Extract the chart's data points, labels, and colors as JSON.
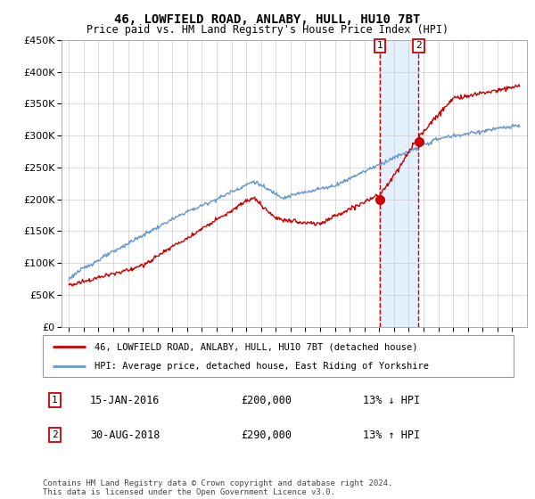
{
  "title": "46, LOWFIELD ROAD, ANLABY, HULL, HU10 7BT",
  "subtitle": "Price paid vs. HM Land Registry's House Price Index (HPI)",
  "legend_line1": "46, LOWFIELD ROAD, ANLABY, HULL, HU10 7BT (detached house)",
  "legend_line2": "HPI: Average price, detached house, East Riding of Yorkshire",
  "transaction1_date": "15-JAN-2016",
  "transaction1_price": "£200,000",
  "transaction1_hpi": "13% ↓ HPI",
  "transaction1_year": 2016.04,
  "transaction1_value": 200000,
  "transaction2_date": "30-AUG-2018",
  "transaction2_price": "£290,000",
  "transaction2_hpi": "13% ↑ HPI",
  "transaction2_year": 2018.66,
  "transaction2_value": 290000,
  "property_color": "#cc0000",
  "hpi_color": "#6699cc",
  "shaded_color": "#ddeeff",
  "footer": "Contains HM Land Registry data © Crown copyright and database right 2024.\nThis data is licensed under the Open Government Licence v3.0.",
  "ylim": [
    0,
    450000
  ],
  "xlim_start": 1994.5,
  "xlim_end": 2026.0
}
